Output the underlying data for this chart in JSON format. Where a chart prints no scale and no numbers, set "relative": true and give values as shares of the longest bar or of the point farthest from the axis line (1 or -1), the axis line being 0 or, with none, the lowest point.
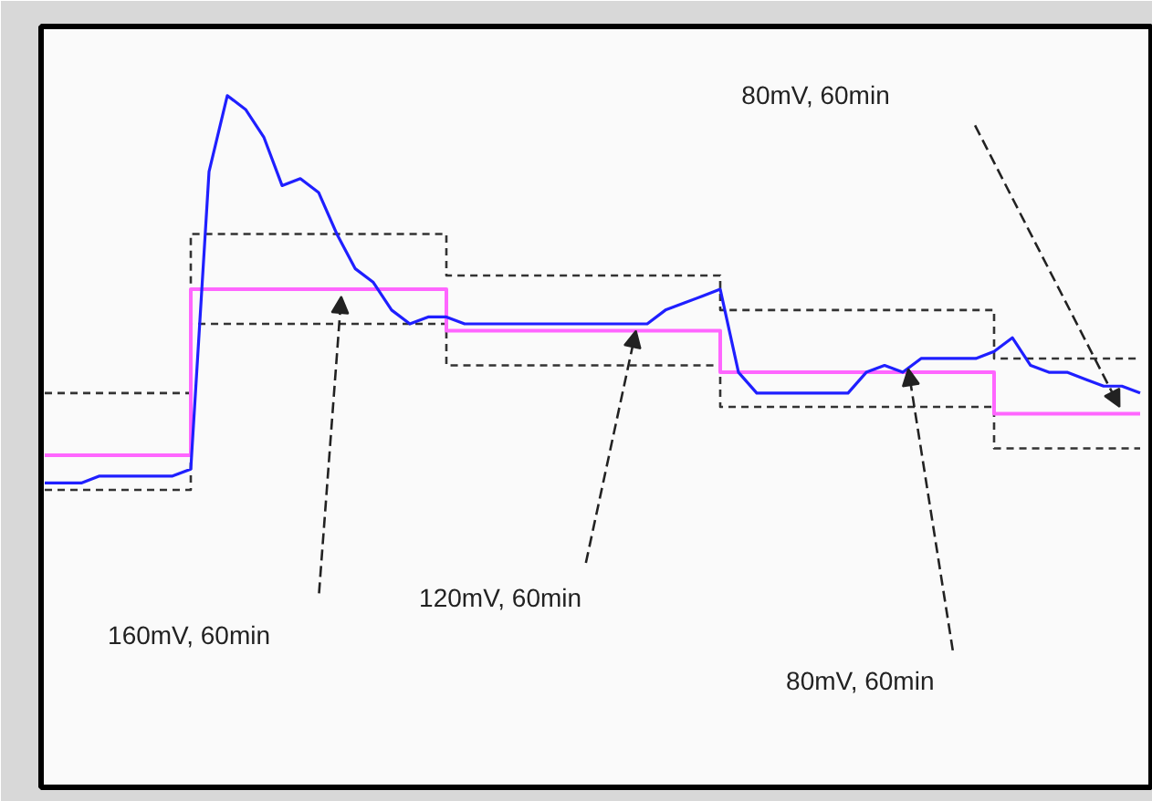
{
  "chart_data": {
    "type": "line",
    "relative": true,
    "grid": false,
    "categories": [
      null,
      null,
      null,
      null,
      null,
      null,
      null,
      null,
      null,
      null,
      null,
      null,
      null,
      null,
      null,
      null,
      null,
      null,
      null,
      null,
      null,
      null,
      null,
      null,
      null,
      null,
      null,
      null,
      null,
      null,
      null,
      null,
      null,
      null,
      null,
      null,
      null,
      null,
      null,
      null,
      null,
      null,
      null,
      null,
      null,
      null,
      null,
      null,
      null,
      null,
      null,
      null,
      null,
      null,
      null,
      null,
      null,
      null,
      null,
      null,
      null
    ],
    "series": [
      {
        "type": "step",
        "color": "#333333",
        "line_style": "dashed",
        "values": [
          0.57,
          0.57,
          0.57,
          0.57,
          0.57,
          0.57,
          0.57,
          0.57,
          0.8,
          0.8,
          0.8,
          0.8,
          0.8,
          0.8,
          0.8,
          0.8,
          0.8,
          0.8,
          0.8,
          0.8,
          0.8,
          0.8,
          0.74,
          0.74,
          0.74,
          0.74,
          0.74,
          0.74,
          0.74,
          0.74,
          0.74,
          0.74,
          0.74,
          0.74,
          0.74,
          0.74,
          0.74,
          0.69,
          0.69,
          0.69,
          0.69,
          0.69,
          0.69,
          0.69,
          0.69,
          0.69,
          0.69,
          0.69,
          0.69,
          0.69,
          0.69,
          0.69,
          0.62,
          0.62,
          0.62,
          0.62,
          0.62,
          0.62,
          0.62,
          0.62,
          0.62
        ]
      },
      {
        "type": "step",
        "color": "#333333",
        "line_style": "dashed",
        "values": [
          0.43,
          0.43,
          0.43,
          0.43,
          0.43,
          0.43,
          0.43,
          0.43,
          0.67,
          0.67,
          0.67,
          0.67,
          0.67,
          0.67,
          0.67,
          0.67,
          0.67,
          0.67,
          0.67,
          0.67,
          0.67,
          0.67,
          0.61,
          0.61,
          0.61,
          0.61,
          0.61,
          0.61,
          0.61,
          0.61,
          0.61,
          0.61,
          0.61,
          0.61,
          0.61,
          0.61,
          0.61,
          0.55,
          0.55,
          0.55,
          0.55,
          0.55,
          0.55,
          0.55,
          0.55,
          0.55,
          0.55,
          0.55,
          0.55,
          0.55,
          0.55,
          0.55,
          0.49,
          0.49,
          0.49,
          0.49,
          0.49,
          0.49,
          0.49,
          0.49,
          0.49
        ]
      },
      {
        "type": "step",
        "color": "#ff66ff",
        "line_style": "solid",
        "values": [
          0.48,
          0.48,
          0.48,
          0.48,
          0.48,
          0.48,
          0.48,
          0.48,
          0.72,
          0.72,
          0.72,
          0.72,
          0.72,
          0.72,
          0.72,
          0.72,
          0.72,
          0.72,
          0.72,
          0.72,
          0.72,
          0.72,
          0.66,
          0.66,
          0.66,
          0.66,
          0.66,
          0.66,
          0.66,
          0.66,
          0.66,
          0.66,
          0.66,
          0.66,
          0.66,
          0.66,
          0.66,
          0.6,
          0.6,
          0.6,
          0.6,
          0.6,
          0.6,
          0.6,
          0.6,
          0.6,
          0.6,
          0.6,
          0.6,
          0.6,
          0.6,
          0.6,
          0.54,
          0.54,
          0.54,
          0.54,
          0.54,
          0.54,
          0.54,
          0.54,
          0.54
        ]
      },
      {
        "color": "#1f1fff",
        "line_style": "solid",
        "values": [
          0.44,
          0.44,
          0.44,
          0.45,
          0.45,
          0.45,
          0.45,
          0.45,
          0.46,
          0.89,
          1.0,
          0.98,
          0.94,
          0.87,
          0.88,
          0.86,
          0.8,
          0.75,
          0.73,
          0.69,
          0.67,
          0.68,
          0.68,
          0.67,
          0.67,
          0.67,
          0.67,
          0.67,
          0.67,
          0.67,
          0.67,
          0.67,
          0.67,
          0.67,
          0.69,
          0.7,
          0.71,
          0.72,
          0.6,
          0.57,
          0.57,
          0.57,
          0.57,
          0.57,
          0.57,
          0.6,
          0.61,
          0.6,
          0.62,
          0.62,
          0.62,
          0.62,
          0.63,
          0.65,
          0.61,
          0.6,
          0.6,
          0.59,
          0.58,
          0.58,
          0.57
        ]
      }
    ],
    "annotations": [
      "160mV, 60min",
      "120mV, 60min",
      "80mV, 60min",
      "80mV, 60min"
    ]
  }
}
